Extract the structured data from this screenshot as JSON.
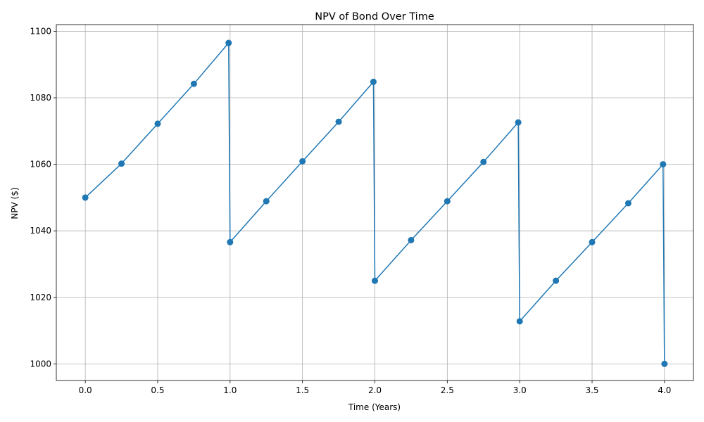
{
  "chart_data": {
    "type": "line",
    "title": "NPV of Bond Over Time",
    "xlabel": "Time (Years)",
    "ylabel": "NPV ($)",
    "xlim": [
      -0.2,
      4.2
    ],
    "ylim": [
      995,
      1102
    ],
    "xticks": [
      0.0,
      0.5,
      1.0,
      1.5,
      2.0,
      2.5,
      3.0,
      3.5,
      4.0
    ],
    "xtick_labels": [
      "0.0",
      "0.5",
      "1.0",
      "1.5",
      "2.0",
      "2.5",
      "3.0",
      "3.5",
      "4.0"
    ],
    "yticks": [
      1000,
      1020,
      1040,
      1060,
      1080,
      1100
    ],
    "ytick_labels": [
      "1000",
      "1020",
      "1040",
      "1060",
      "1080",
      "1100"
    ],
    "grid": true,
    "marker": "circle",
    "color": "#1f77b4",
    "series": [
      {
        "x": [
          0.0,
          0.25,
          0.5,
          0.75,
          0.99,
          1.0,
          1.25,
          1.5,
          1.75,
          1.99,
          2.0,
          2.25,
          2.5,
          2.75,
          2.99,
          3.0,
          3.25,
          3.5,
          3.75,
          3.99,
          4.0
        ],
        "y": [
          1050.0,
          1060.2,
          1072.2,
          1084.2,
          1096.5,
          1036.6,
          1048.9,
          1060.9,
          1072.8,
          1084.8,
          1025.0,
          1037.2,
          1048.9,
          1060.7,
          1072.6,
          1012.8,
          1025.0,
          1036.6,
          1048.3,
          1060.0,
          1000.0
        ]
      }
    ]
  }
}
